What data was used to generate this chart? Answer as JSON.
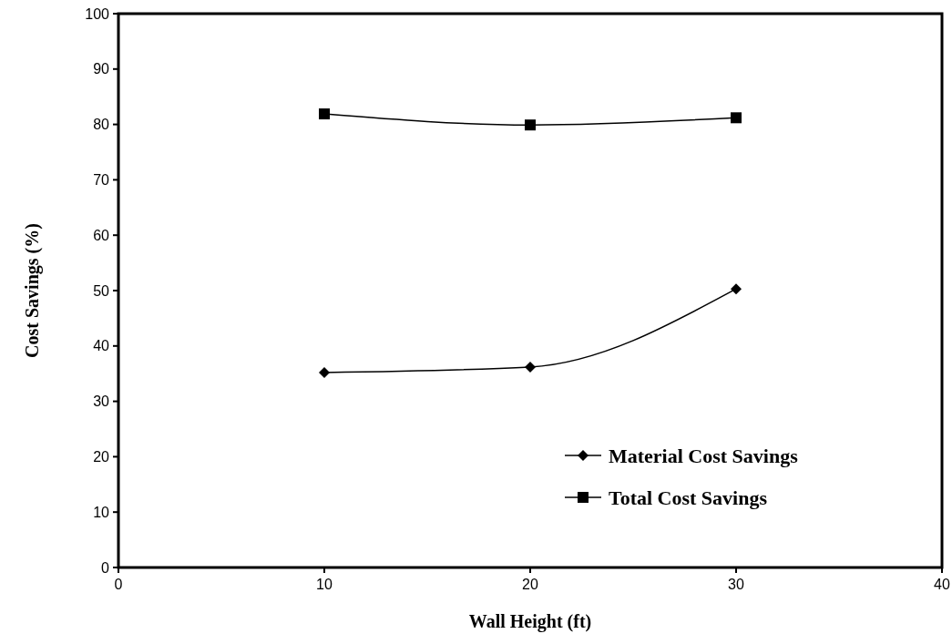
{
  "chart_data": {
    "type": "line",
    "xlabel": "Wall Height (ft)",
    "ylabel": "Cost Savings (%)",
    "xlim": [
      0,
      40
    ],
    "xticks": [
      0,
      10,
      20,
      30,
      40
    ],
    "ylim": [
      0,
      100
    ],
    "yticks": [
      0,
      10,
      20,
      30,
      40,
      50,
      60,
      70,
      80,
      90,
      100
    ],
    "grid": false,
    "legend": "bottom right",
    "line_style": "solid",
    "series": [
      {
        "name": "Material Cost Savings",
        "color": "#000000",
        "marker": "diamond",
        "x": [
          10,
          20,
          30
        ],
        "values": [
          35.2,
          36.2,
          50.3
        ]
      },
      {
        "name": "Total Cost Savings",
        "color": "#000000",
        "marker": "square",
        "x": [
          10,
          20,
          30
        ],
        "values": [
          81.9,
          79.9,
          81.2
        ]
      }
    ]
  }
}
